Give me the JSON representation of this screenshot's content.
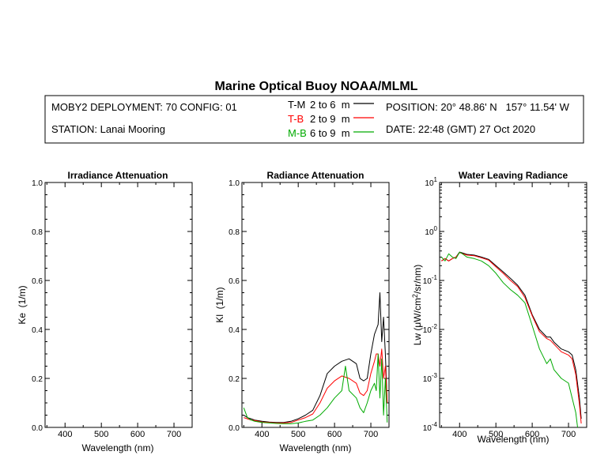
{
  "header": {
    "title": "Marine Optical Buoy NOAA/MLML",
    "deployment": "MOBY2 DEPLOYMENT: 70 CONFIG: 01",
    "station": "STATION: Lanai Mooring",
    "position": "POSITION: 20° 48.86' N   157° 11.54' W",
    "date": "DATE: 22:48 (GMT) 27 Oct 2020",
    "legend": [
      {
        "code": "T-M",
        "range": "2 to 6  m",
        "color": "#000000"
      },
      {
        "code": "T-B",
        "range": "2 to 9  m",
        "color": "#ff0000"
      },
      {
        "code": "M-B",
        "range": "6 to 9  m",
        "color": "#00aa00"
      }
    ]
  },
  "chart_data": [
    {
      "type": "line",
      "title": "Irradiance Attenuation",
      "xlabel": "Wavelength (nm)",
      "ylabel": "Ke  (1/m)",
      "xlim": [
        345,
        750
      ],
      "ylim": [
        0,
        1
      ],
      "xticks": [
        "400",
        "500",
        "600",
        "700"
      ],
      "yticks": [
        "0.0",
        "0.2",
        "0.4",
        "0.6",
        "0.8",
        "1.0"
      ],
      "series": []
    },
    {
      "type": "line",
      "title": "Radiance Attenuation",
      "xlabel": "Wavelength (nm)",
      "ylabel": "Kl  (1/m)",
      "xlim": [
        345,
        750
      ],
      "ylim": [
        0,
        1
      ],
      "xticks": [
        "400",
        "500",
        "600",
        "700"
      ],
      "yticks": [
        "0.0",
        "0.2",
        "0.4",
        "0.6",
        "0.8",
        "1.0"
      ],
      "series": [
        {
          "name": "T-M",
          "color": "#000000",
          "x": [
            350,
            360,
            370,
            380,
            400,
            420,
            440,
            460,
            480,
            500,
            520,
            540,
            560,
            580,
            600,
            620,
            640,
            660,
            670,
            680,
            690,
            700,
            710,
            715,
            720,
            725,
            730,
            735,
            740,
            745
          ],
          "y": [
            0.05,
            0.04,
            0.035,
            0.03,
            0.025,
            0.022,
            0.02,
            0.02,
            0.025,
            0.035,
            0.05,
            0.07,
            0.13,
            0.22,
            0.25,
            0.27,
            0.28,
            0.26,
            0.2,
            0.19,
            0.2,
            0.3,
            0.38,
            0.4,
            0.42,
            0.55,
            0.35,
            0.45,
            0.3,
            0.1
          ]
        },
        {
          "name": "T-B",
          "color": "#ff0000",
          "x": [
            350,
            360,
            370,
            380,
            400,
            420,
            440,
            460,
            480,
            500,
            520,
            540,
            560,
            580,
            600,
            620,
            640,
            660,
            670,
            680,
            690,
            700,
            710,
            715,
            720,
            725,
            730,
            735,
            740,
            745
          ],
          "y": [
            0.04,
            0.035,
            0.03,
            0.028,
            0.022,
            0.02,
            0.018,
            0.018,
            0.02,
            0.03,
            0.04,
            0.055,
            0.1,
            0.16,
            0.19,
            0.21,
            0.2,
            0.18,
            0.14,
            0.13,
            0.15,
            0.22,
            0.27,
            0.3,
            0.3,
            0.25,
            0.32,
            0.2,
            0.25,
            0.1
          ]
        },
        {
          "name": "M-B",
          "color": "#00aa00",
          "x": [
            350,
            355,
            360,
            370,
            380,
            400,
            420,
            440,
            460,
            480,
            500,
            520,
            540,
            560,
            580,
            600,
            620,
            630,
            640,
            660,
            670,
            680,
            690,
            700,
            710,
            715,
            720,
            725,
            730,
            735,
            740,
            745
          ],
          "y": [
            0.08,
            0.06,
            0.04,
            0.03,
            0.025,
            0.02,
            0.018,
            0.016,
            0.015,
            0.015,
            0.018,
            0.025,
            0.03,
            0.05,
            0.08,
            0.12,
            0.15,
            0.25,
            0.15,
            0.12,
            0.08,
            0.06,
            0.1,
            0.15,
            0.18,
            0.15,
            0.3,
            0.12,
            0.28,
            0.05,
            0.2,
            0.02
          ]
        }
      ]
    },
    {
      "type": "line",
      "title": "Water Leaving Radiance",
      "xlabel": "Wavelength (nm)",
      "ylabel": "Lw  (μW/cm²/sr/nm)",
      "xlim": [
        345,
        750
      ],
      "ylim": [
        0.0001,
        10
      ],
      "yscale": "log",
      "xticks": [
        "400",
        "500",
        "600",
        "700"
      ],
      "yticks": [
        "10-4",
        "10-3",
        "10-2",
        "10-1",
        "100",
        "101"
      ],
      "series": [
        {
          "name": "black",
          "color": "#000000",
          "x": [
            350,
            360,
            370,
            380,
            390,
            400,
            410,
            420,
            440,
            460,
            480,
            500,
            520,
            540,
            560,
            580,
            600,
            620,
            640,
            650,
            660,
            680,
            700,
            710,
            720,
            730,
            735
          ],
          "y": [
            0.25,
            0.28,
            0.25,
            0.28,
            0.3,
            0.38,
            0.36,
            0.34,
            0.33,
            0.3,
            0.27,
            0.2,
            0.15,
            0.11,
            0.08,
            0.05,
            0.02,
            0.01,
            0.007,
            0.007,
            0.0055,
            0.004,
            0.0035,
            0.003,
            0.0015,
            0.0004,
            0.00015
          ]
        },
        {
          "name": "red",
          "color": "#ff0000",
          "x": [
            350,
            360,
            370,
            380,
            390,
            400,
            410,
            420,
            440,
            460,
            480,
            500,
            520,
            540,
            560,
            580,
            600,
            620,
            640,
            650,
            660,
            680,
            700,
            710,
            720,
            730,
            735
          ],
          "y": [
            0.25,
            0.28,
            0.25,
            0.28,
            0.3,
            0.37,
            0.35,
            0.33,
            0.32,
            0.29,
            0.26,
            0.19,
            0.14,
            0.1,
            0.075,
            0.045,
            0.019,
            0.009,
            0.0065,
            0.006,
            0.005,
            0.0035,
            0.003,
            0.0025,
            0.0012,
            0.0003,
            0.00012
          ]
        },
        {
          "name": "green",
          "color": "#00aa00",
          "x": [
            350,
            360,
            370,
            380,
            390,
            400,
            410,
            420,
            440,
            460,
            480,
            500,
            520,
            540,
            560,
            580,
            600,
            620,
            640,
            650,
            660,
            680,
            700,
            710,
            720,
            725
          ],
          "y": [
            0.3,
            0.25,
            0.35,
            0.3,
            0.28,
            0.38,
            0.34,
            0.3,
            0.28,
            0.25,
            0.2,
            0.14,
            0.09,
            0.065,
            0.05,
            0.035,
            0.012,
            0.004,
            0.002,
            0.0025,
            0.0015,
            0.001,
            0.0008,
            0.0004,
            0.0002,
            0.0001
          ]
        }
      ]
    }
  ]
}
